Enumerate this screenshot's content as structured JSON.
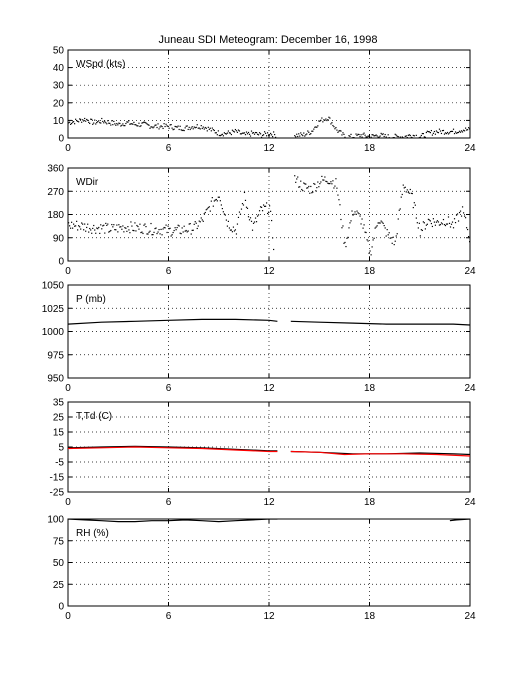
{
  "title": "Juneau SDI Meteogram:   December 16, 1998",
  "chart_data": [
    {
      "type": "scatter",
      "label": "WSpd (kts)",
      "xlim": [
        0,
        24
      ],
      "ylim": [
        0,
        50
      ],
      "xticks": [
        0,
        6,
        12,
        18,
        24
      ],
      "yticks": [
        0,
        10,
        20,
        30,
        40,
        50
      ],
      "grid": true,
      "series": [
        {
          "color": "#000000",
          "segments": [
            {
              "x": [
                0,
                0.5,
                1,
                1.5,
                2,
                2.5,
                3,
                3.5,
                4,
                4.5,
                5,
                5.5,
                6,
                6.5,
                7,
                7.5,
                8,
                8.5,
                9,
                9.5,
                10,
                10.5,
                11,
                11.5,
                12,
                12.4
              ],
              "y": [
                9,
                10,
                11,
                9,
                10,
                9,
                8,
                9,
                8,
                8,
                7,
                7,
                7,
                6,
                6,
                7,
                7,
                5,
                3,
                3,
                4,
                2,
                3,
                2,
                3,
                2
              ]
            },
            {
              "x": [
                13.5,
                14,
                14.5,
                15,
                15.5,
                16,
                16.5,
                17,
                17.5,
                18,
                18.5,
                19,
                19.5,
                20,
                20.5,
                21,
                21.5,
                22,
                22.5,
                23,
                23.5,
                24
              ],
              "y": [
                2,
                2,
                4,
                10,
                12,
                5,
                1,
                1,
                2,
                1,
                2,
                1,
                1,
                1,
                2,
                1,
                3,
                4,
                4,
                4,
                5,
                5
              ]
            }
          ]
        }
      ]
    },
    {
      "type": "scatter",
      "label": "WDir",
      "xlim": [
        0,
        24
      ],
      "ylim": [
        0,
        360
      ],
      "xticks": [
        0,
        6,
        12,
        18,
        24
      ],
      "yticks": [
        0,
        90,
        180,
        270,
        360
      ],
      "grid": true,
      "series": [
        {
          "color": "#000000",
          "segments": [
            {
              "x": [
                0,
                0.5,
                1,
                1.5,
                2,
                2.5,
                3,
                3.5,
                4,
                4.5,
                5,
                5.5,
                6,
                6.5,
                7,
                7.5,
                8,
                8.5,
                9,
                9.5,
                10,
                10.5,
                11,
                11.5,
                12,
                12.3
              ],
              "y": [
                140,
                140,
                135,
                130,
                130,
                125,
                130,
                135,
                130,
                130,
                125,
                125,
                120,
                120,
                125,
                130,
                160,
                220,
                260,
                150,
                120,
                250,
                130,
                200,
                210,
                30
              ]
            },
            {
              "x": [
                13.5,
                14,
                14.5,
                15,
                15.5,
                16,
                16.5,
                17,
                17.5,
                18,
                18.5,
                19,
                19.5,
                20,
                20.5,
                21,
                21.5,
                22,
                22.5,
                23,
                23.5,
                24
              ],
              "y": [
                320,
                290,
                280,
                310,
                320,
                300,
                60,
                200,
                160,
                30,
                170,
                110,
                70,
                300,
                250,
                120,
                160,
                150,
                160,
                140,
                200,
                80
              ]
            }
          ]
        }
      ]
    },
    {
      "type": "line",
      "label": "P (mb)",
      "xlim": [
        0,
        24
      ],
      "ylim": [
        950,
        1050
      ],
      "xticks": [
        0,
        6,
        12,
        18,
        24
      ],
      "yticks": [
        950,
        975,
        1000,
        1025,
        1050
      ],
      "grid": true,
      "series": [
        {
          "color": "#000000",
          "segments": [
            {
              "x": [
                0,
                2,
                4,
                6,
                8,
                10,
                12,
                12.5
              ],
              "y": [
                1008,
                1010,
                1011,
                1012,
                1013,
                1013,
                1012,
                1011
              ]
            },
            {
              "x": [
                13.3,
                15,
                17,
                19,
                21,
                23,
                24
              ],
              "y": [
                1011,
                1010,
                1009,
                1008,
                1008,
                1008,
                1007
              ]
            }
          ]
        }
      ]
    },
    {
      "type": "line",
      "label": "T,Td (C)",
      "xlim": [
        0,
        24
      ],
      "ylim": [
        -25,
        35
      ],
      "xticks": [
        0,
        6,
        12,
        18,
        24
      ],
      "yticks": [
        -25,
        -15,
        -5,
        5,
        15,
        25,
        35
      ],
      "grid": true,
      "series": [
        {
          "color": "#000000",
          "segments": [
            {
              "x": [
                0,
                2,
                4,
                6,
                8,
                10,
                12,
                12.5
              ],
              "y": [
                4.5,
                5,
                5.5,
                5,
                4.5,
                3.5,
                2.5,
                2.5
              ]
            },
            {
              "x": [
                13.3,
                15,
                17,
                19,
                21,
                23,
                24
              ],
              "y": [
                2,
                1.5,
                0.5,
                0.5,
                1,
                0.5,
                0
              ]
            }
          ]
        },
        {
          "color": "#ff0000",
          "segments": [
            {
              "x": [
                0,
                2,
                4,
                6,
                8,
                10,
                12,
                12.5
              ],
              "y": [
                4,
                4.5,
                5,
                4.5,
                4,
                3,
                2,
                2
              ]
            },
            {
              "x": [
                13.3,
                15,
                16.5,
                18,
                20,
                22,
                24
              ],
              "y": [
                2,
                1.5,
                0,
                0.5,
                0.5,
                0,
                -1
              ]
            }
          ]
        }
      ]
    },
    {
      "type": "line",
      "label": "RH (%)",
      "xlim": [
        0,
        24
      ],
      "ylim": [
        0,
        100
      ],
      "xticks": [
        0,
        6,
        12,
        18,
        24
      ],
      "yticks": [
        0,
        25,
        50,
        75,
        100
      ],
      "grid": true,
      "series": [
        {
          "color": "#000000",
          "segments": [
            {
              "x": [
                0,
                1,
                2,
                3,
                4,
                5,
                6,
                7,
                8,
                9,
                10,
                11,
                12,
                12.5
              ],
              "y": [
                100,
                99,
                98,
                97,
                97,
                98,
                98,
                99,
                98,
                97,
                98,
                99,
                100,
                100
              ]
            },
            {
              "x": [
                22.8,
                23.2,
                24
              ],
              "y": [
                98,
                99,
                100
              ]
            }
          ]
        }
      ]
    }
  ]
}
